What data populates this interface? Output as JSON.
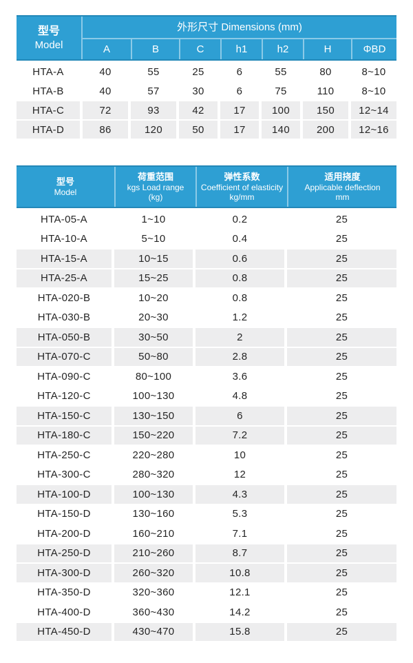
{
  "colors": {
    "header_blue": "#2e9fd3",
    "header_edge": "#2388b8",
    "header_divider": "rgba(255,255,255,0.45)",
    "stripe_gray": "#ededee",
    "body_text": "#252525",
    "header_text": "#ffffff"
  },
  "table1": {
    "model_header": {
      "zh": "型号",
      "en": "Model"
    },
    "group_header": "外形尺寸 Dimensions (mm)",
    "columns": [
      "A",
      "B",
      "C",
      "h1",
      "h2",
      "H",
      "ΦBD"
    ],
    "rows": [
      {
        "model": "HTA-A",
        "values": [
          "40",
          "55",
          "25",
          "6",
          "55",
          "80",
          "8~10"
        ],
        "shaded": false
      },
      {
        "model": "HTA-B",
        "values": [
          "40",
          "57",
          "30",
          "6",
          "75",
          "110",
          "8~10"
        ],
        "shaded": false
      },
      {
        "model": "HTA-C",
        "values": [
          "72",
          "93",
          "42",
          "17",
          "100",
          "150",
          "12~14"
        ],
        "shaded": true
      },
      {
        "model": "HTA-D",
        "values": [
          "86",
          "120",
          "50",
          "17",
          "140",
          "200",
          "12~16"
        ],
        "shaded": true
      }
    ]
  },
  "table2": {
    "headers": {
      "model": [
        "型号",
        "Model"
      ],
      "load": [
        "荷重范围",
        "kgs Load range",
        "(kg)"
      ],
      "coefficient": [
        "弹性系数",
        "Coefficient of elasticity",
        "kg/mm"
      ],
      "deflection": [
        "适用挠度",
        "Applicable deflection",
        "mm"
      ]
    },
    "rows": [
      {
        "model": "HTA-05-A",
        "load_range": "1~10",
        "coefficient": "0.2",
        "deflection": "25",
        "shaded": false
      },
      {
        "model": "HTA-10-A",
        "load_range": "5~10",
        "coefficient": "0.4",
        "deflection": "25",
        "shaded": false
      },
      {
        "model": "HTA-15-A",
        "load_range": "10~15",
        "coefficient": "0.6",
        "deflection": "25",
        "shaded": true
      },
      {
        "model": "HTA-25-A",
        "load_range": "15~25",
        "coefficient": "0.8",
        "deflection": "25",
        "shaded": true
      },
      {
        "model": "HTA-020-B",
        "load_range": "10~20",
        "coefficient": "0.8",
        "deflection": "25",
        "shaded": false
      },
      {
        "model": "HTA-030-B",
        "load_range": "20~30",
        "coefficient": "1.2",
        "deflection": "25",
        "shaded": false
      },
      {
        "model": "HTA-050-B",
        "load_range": "30~50",
        "coefficient": "2",
        "deflection": "25",
        "shaded": true
      },
      {
        "model": "HTA-070-C",
        "load_range": "50~80",
        "coefficient": "2.8",
        "deflection": "25",
        "shaded": true
      },
      {
        "model": "HTA-090-C",
        "load_range": "80~100",
        "coefficient": "3.6",
        "deflection": "25",
        "shaded": false
      },
      {
        "model": "HTA-120-C",
        "load_range": "100~130",
        "coefficient": "4.8",
        "deflection": "25",
        "shaded": false
      },
      {
        "model": "HTA-150-C",
        "load_range": "130~150",
        "coefficient": "6",
        "deflection": "25",
        "shaded": true
      },
      {
        "model": "HTA-180-C",
        "load_range": "150~220",
        "coefficient": "7.2",
        "deflection": "25",
        "shaded": true
      },
      {
        "model": "HTA-250-C",
        "load_range": "220~280",
        "coefficient": "10",
        "deflection": "25",
        "shaded": false
      },
      {
        "model": "HTA-300-C",
        "load_range": "280~320",
        "coefficient": "12",
        "deflection": "25",
        "shaded": false
      },
      {
        "model": "HTA-100-D",
        "load_range": "100~130",
        "coefficient": "4.3",
        "deflection": "25",
        "shaded": true
      },
      {
        "model": "HTA-150-D",
        "load_range": "130~160",
        "coefficient": "5.3",
        "deflection": "25",
        "shaded": false
      },
      {
        "model": "HTA-200-D",
        "load_range": "160~210",
        "coefficient": "7.1",
        "deflection": "25",
        "shaded": false
      },
      {
        "model": "HTA-250-D",
        "load_range": "210~260",
        "coefficient": "8.7",
        "deflection": "25",
        "shaded": true
      },
      {
        "model": "HTA-300-D",
        "load_range": "260~320",
        "coefficient": "10.8",
        "deflection": "25",
        "shaded": true
      },
      {
        "model": "HTA-350-D",
        "load_range": "320~360",
        "coefficient": "12.1",
        "deflection": "25",
        "shaded": false
      },
      {
        "model": "HTA-400-D",
        "load_range": "360~430",
        "coefficient": "14.2",
        "deflection": "25",
        "shaded": false
      },
      {
        "model": "HTA-450-D",
        "load_range": "430~470",
        "coefficient": "15.8",
        "deflection": "25",
        "shaded": true
      }
    ]
  }
}
